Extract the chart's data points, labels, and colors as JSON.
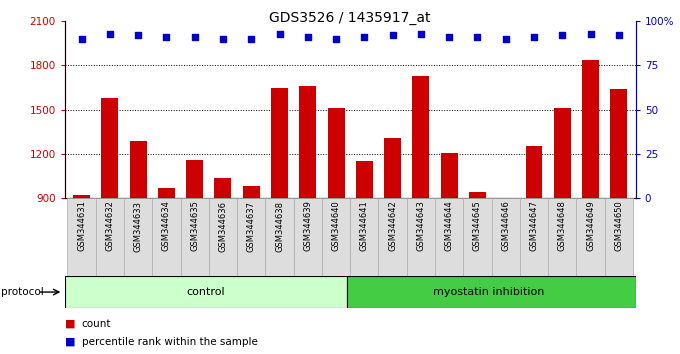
{
  "title": "GDS3526 / 1435917_at",
  "samples": [
    "GSM344631",
    "GSM344632",
    "GSM344633",
    "GSM344634",
    "GSM344635",
    "GSM344636",
    "GSM344637",
    "GSM344638",
    "GSM344639",
    "GSM344640",
    "GSM344641",
    "GSM344642",
    "GSM344643",
    "GSM344644",
    "GSM344645",
    "GSM344646",
    "GSM344647",
    "GSM344648",
    "GSM344649",
    "GSM344650"
  ],
  "counts": [
    920,
    1580,
    1290,
    970,
    1160,
    1040,
    980,
    1650,
    1660,
    1510,
    1150,
    1310,
    1730,
    1205,
    940,
    870,
    1255,
    1510,
    1840,
    1640
  ],
  "percentile_ranks": [
    90,
    93,
    92,
    91,
    91,
    90,
    90,
    93,
    91,
    90,
    91,
    92,
    93,
    91,
    91,
    90,
    91,
    92,
    93,
    92
  ],
  "control_count": 10,
  "bar_color": "#cc0000",
  "dot_color": "#0000cc",
  "ylim_left": [
    900,
    2100
  ],
  "ylim_right": [
    0,
    100
  ],
  "yticks_left": [
    900,
    1200,
    1500,
    1800,
    2100
  ],
  "yticks_right": [
    0,
    25,
    50,
    75,
    100
  ],
  "grid_values": [
    1200,
    1500,
    1800
  ],
  "control_label": "control",
  "treatment_label": "myostatin inhibition",
  "control_color": "#ccffcc",
  "treatment_color": "#44cc44",
  "protocol_label": "protocol",
  "legend_count_label": "count",
  "legend_pct_label": "percentile rank within the sample",
  "bg_color": "#ffffff",
  "title_fontsize": 10,
  "axis_label_color_left": "#cc0000",
  "axis_label_color_right": "#0000cc",
  "sample_box_color": "#dddddd",
  "sample_box_edge": "#aaaaaa"
}
